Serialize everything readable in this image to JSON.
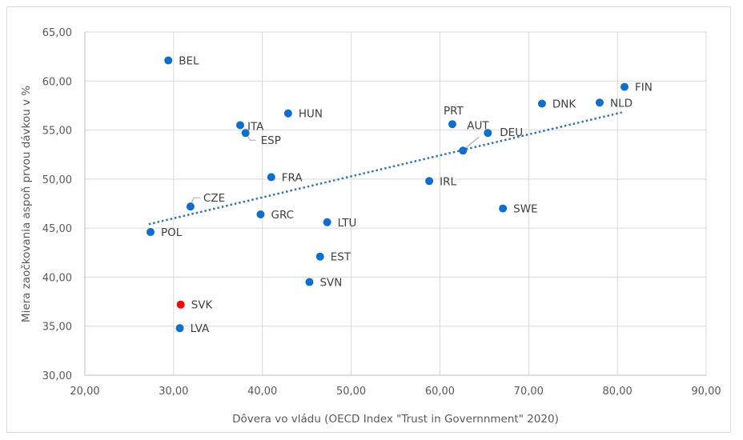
{
  "chart_data": {
    "type": "scatter",
    "title": "",
    "xlabel": "Dôvera vo vládu (OECD Index \"Trust in Governnment\"  2020)",
    "ylabel": "Miera zaočkovania aspoň prvou dávkou v %",
    "xlim": [
      20,
      90
    ],
    "ylim": [
      30,
      65
    ],
    "x_ticks": [
      20,
      30,
      40,
      50,
      60,
      70,
      80,
      90
    ],
    "y_ticks": [
      30,
      35,
      40,
      45,
      50,
      55,
      60,
      65
    ],
    "x_tick_labels": [
      "20,00",
      "30,00",
      "40,00",
      "50,00",
      "60,00",
      "70,00",
      "80,00",
      "90,00"
    ],
    "y_tick_labels": [
      "30,00",
      "35,00",
      "40,00",
      "45,00",
      "50,00",
      "55,00",
      "60,00",
      "65,00"
    ],
    "grid": true,
    "legend": "none",
    "colors": {
      "default_point": "#0a6fd0",
      "highlight_point": "#ff0000",
      "trendline": "#2e75b6",
      "grid": "#d9d9d9",
      "text": "#595959"
    },
    "points": [
      {
        "label": "BEL",
        "x": 29.4,
        "y": 62.1,
        "highlight": false
      },
      {
        "label": "HUN",
        "x": 42.9,
        "y": 56.7,
        "highlight": false
      },
      {
        "label": "ITA",
        "x": 37.5,
        "y": 55.5,
        "highlight": false
      },
      {
        "label": "ESP",
        "x": 38.1,
        "y": 54.7,
        "highlight": false
      },
      {
        "label": "FRA",
        "x": 41.0,
        "y": 50.2,
        "highlight": false
      },
      {
        "label": "CZE",
        "x": 31.9,
        "y": 47.2,
        "highlight": false
      },
      {
        "label": "GRC",
        "x": 39.8,
        "y": 46.4,
        "highlight": false
      },
      {
        "label": "POL",
        "x": 27.4,
        "y": 44.6,
        "highlight": false
      },
      {
        "label": "LTU",
        "x": 47.3,
        "y": 45.6,
        "highlight": false
      },
      {
        "label": "EST",
        "x": 46.5,
        "y": 42.1,
        "highlight": false
      },
      {
        "label": "SVN",
        "x": 45.3,
        "y": 39.5,
        "highlight": false
      },
      {
        "label": "SVK",
        "x": 30.8,
        "y": 37.2,
        "highlight": true
      },
      {
        "label": "LVA",
        "x": 30.7,
        "y": 34.8,
        "highlight": false
      },
      {
        "label": "PRT",
        "x": 61.4,
        "y": 55.6,
        "highlight": false
      },
      {
        "label": "AUT",
        "x": 62.6,
        "y": 52.9,
        "highlight": false
      },
      {
        "label": "DEU",
        "x": 65.4,
        "y": 54.7,
        "highlight": false
      },
      {
        "label": "IRL",
        "x": 58.8,
        "y": 49.8,
        "highlight": false
      },
      {
        "label": "DNK",
        "x": 71.5,
        "y": 57.7,
        "highlight": false
      },
      {
        "label": "NLD",
        "x": 78.0,
        "y": 57.8,
        "highlight": false
      },
      {
        "label": "FIN",
        "x": 80.8,
        "y": 59.4,
        "highlight": false
      },
      {
        "label": "SWE",
        "x": 67.1,
        "y": 47.0,
        "highlight": false
      }
    ],
    "trendline": {
      "type": "linear",
      "style": "dotted",
      "x_start": 27.2,
      "y_start": 45.4,
      "x_end": 80.5,
      "y_end": 56.8
    }
  }
}
